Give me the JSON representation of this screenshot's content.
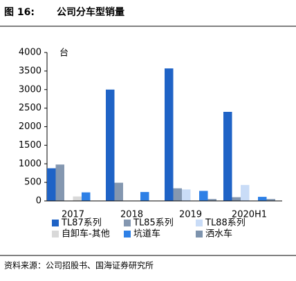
{
  "header": {
    "figure": "图 16:",
    "title": "公司分车型销量"
  },
  "chart_data": {
    "type": "bar",
    "unit": "台",
    "categories": [
      "2017",
      "2018",
      "2019",
      "2020H1"
    ],
    "series": [
      {
        "name": "TL87系列",
        "color": "#1f63c6",
        "values": [
          880,
          3000,
          3570,
          2400
        ]
      },
      {
        "name": "TL85系列",
        "color": "#8497b0",
        "values": [
          980,
          490,
          340,
          100
        ]
      },
      {
        "name": "TL88系列",
        "color": "#c9dcf7",
        "values": [
          0,
          0,
          310,
          430
        ]
      },
      {
        "name": "自卸车-其他",
        "color": "#d9d9d9",
        "values": [
          120,
          0,
          0,
          0
        ]
      },
      {
        "name": "坑道车",
        "color": "#2e80e6",
        "values": [
          230,
          240,
          270,
          110
        ]
      },
      {
        "name": "洒水车",
        "color": "#7d93ad",
        "values": [
          0,
          0,
          50,
          50
        ]
      }
    ],
    "ylim": [
      0,
      4000
    ],
    "yticks": [
      0,
      500,
      1000,
      1500,
      2000,
      2500,
      3000,
      3500,
      4000
    ]
  },
  "source": "资料来源：公司招股书、国海证券研究所"
}
